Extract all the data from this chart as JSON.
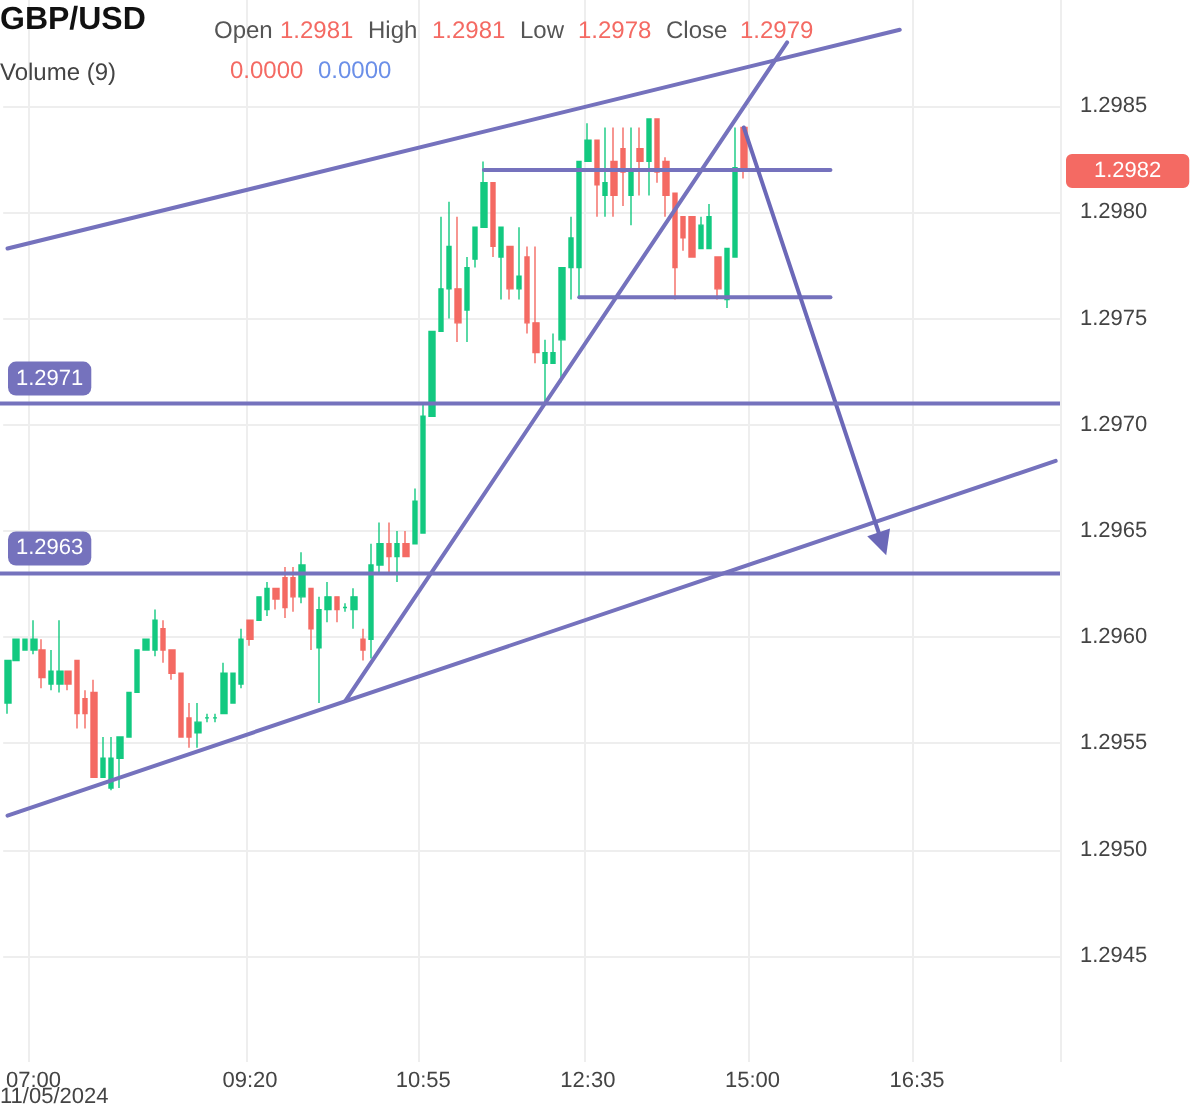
{
  "chart_data": {
    "type": "candlestick",
    "title": "GBP/USD",
    "annotations": [
      "Open",
      "1.2981",
      "High",
      "1.2981",
      "Low",
      "1.2978",
      "Close",
      "1.2979",
      "Volume (9)",
      "0.0000",
      "0.0000",
      "11/05/2024",
      "1.2982"
    ],
    "categories": [
      null,
      null,
      null,
      "07:00",
      null,
      null,
      null,
      null,
      null,
      null,
      null,
      null,
      null,
      null,
      null,
      null,
      null,
      null,
      null,
      null,
      null,
      null,
      null,
      null,
      null,
      null,
      null,
      null,
      "09:20",
      null,
      null,
      null,
      null,
      null,
      null,
      null,
      null,
      null,
      null,
      null,
      null,
      null,
      null,
      null,
      null,
      null,
      null,
      null,
      "10:55",
      null,
      null,
      null,
      null,
      null,
      null,
      null,
      null,
      null,
      null,
      null,
      null,
      null,
      null,
      null,
      null,
      null,
      null,
      "12:30",
      null,
      null,
      null,
      null,
      null,
      null,
      null,
      null,
      null,
      null,
      null,
      null,
      null,
      null,
      null,
      null,
      null,
      null,
      "15:00",
      null,
      null,
      null,
      null,
      null,
      null,
      null,
      null,
      null,
      null,
      null,
      null,
      null,
      null,
      null,
      null,
      null,
      null,
      "16:35",
      null,
      null,
      null,
      null,
      null,
      null,
      null,
      null,
      null,
      null,
      null,
      null,
      null,
      null,
      null,
      null
    ],
    "ylim": [
      1.294,
      1.299
    ],
    "yticks": [
      {
        "value": 1.2945,
        "label": "1.2945"
      },
      {
        "value": 1.295,
        "label": "1.2950"
      },
      {
        "value": 1.2955,
        "label": "1.2955"
      },
      {
        "value": 1.296,
        "label": "1.2960"
      },
      {
        "value": 1.2965,
        "label": "1.2965"
      },
      {
        "value": 1.297,
        "label": "1.2970"
      },
      {
        "value": 1.2975,
        "label": "1.2975"
      },
      {
        "value": 1.298,
        "label": "1.2980"
      },
      {
        "value": 1.2985,
        "label": "1.2985"
      }
    ],
    "grid": true,
    "ref_lines": [
      {
        "axis": "y",
        "value": 1.2971,
        "label": "1.2971",
        "color": "#7572bd"
      },
      {
        "axis": "y",
        "value": 1.2963,
        "label": "1.2963",
        "color": "#7572bd"
      }
    ],
    "series": [
      {
        "type": "candlestick",
        "ohlc": [
          [
            1.29569,
            1.29589,
            1.29564,
            1.29589
          ],
          [
            1.29589,
            1.29599,
            1.29589,
            1.29599
          ],
          [
            1.29594,
            1.29599,
            1.29594,
            1.29599
          ],
          [
            1.29594,
            1.29608,
            1.29592,
            1.29599
          ],
          [
            1.29594,
            1.29599,
            1.29576,
            1.29581
          ],
          [
            1.29578,
            1.29594,
            1.29575,
            1.29584
          ],
          [
            1.29578,
            1.29608,
            1.29574,
            1.29584
          ],
          [
            1.29584,
            1.29584,
            1.29575,
            1.29578
          ],
          [
            1.29589,
            1.29589,
            1.29557,
            1.29564
          ],
          [
            1.29571,
            1.29575,
            1.29557,
            1.29564
          ],
          [
            1.29574,
            1.2958,
            1.29534,
            1.29534
          ],
          [
            1.29534,
            1.29553,
            1.29534,
            1.29543
          ],
          [
            1.29529,
            1.29553,
            1.29528,
            1.29543
          ],
          [
            1.29543,
            1.29553,
            1.29529,
            1.29553
          ],
          [
            1.29553,
            1.29574,
            1.29553,
            1.29574
          ],
          [
            1.29574,
            1.29594,
            1.29574,
            1.29594
          ],
          [
            1.29594,
            1.29599,
            1.29594,
            1.29599
          ],
          [
            1.29594,
            1.29613,
            1.29591,
            1.29608
          ],
          [
            1.29604,
            1.29608,
            1.29588,
            1.29594
          ],
          [
            1.29594,
            1.29594,
            1.2958,
            1.29583
          ],
          [
            1.29583,
            1.29583,
            1.29553,
            1.29553
          ],
          [
            1.29562,
            1.29569,
            1.29548,
            1.29553
          ],
          [
            1.29555,
            1.29569,
            1.29548,
            1.2956
          ],
          [
            1.29562,
            1.29564,
            1.2956,
            1.29562
          ],
          [
            1.29562,
            1.29564,
            1.2956,
            1.29562
          ],
          [
            1.29564,
            1.29588,
            1.29564,
            1.29583
          ],
          [
            1.29569,
            1.29583,
            1.29569,
            1.29583
          ],
          [
            1.29578,
            1.29604,
            1.29576,
            1.29599
          ],
          [
            1.29608,
            1.29608,
            1.29596,
            1.29599
          ],
          [
            1.29608,
            1.29619,
            1.29608,
            1.29619
          ],
          [
            1.29613,
            1.29626,
            1.2961,
            1.29623
          ],
          [
            1.29623,
            1.29623,
            1.29613,
            1.29618
          ],
          [
            1.29628,
            1.29633,
            1.29609,
            1.29614
          ],
          [
            1.29628,
            1.29633,
            1.29612,
            1.29619
          ],
          [
            1.29619,
            1.2964,
            1.29616,
            1.29634
          ],
          [
            1.29623,
            1.29623,
            1.29594,
            1.29604
          ],
          [
            1.29595,
            1.29619,
            1.29569,
            1.29613
          ],
          [
            1.29613,
            1.29626,
            1.29607,
            1.29619
          ],
          [
            1.29619,
            1.29619,
            1.29607,
            1.29613
          ],
          [
            1.29614,
            1.29616,
            1.29612,
            1.29614
          ],
          [
            1.29613,
            1.29623,
            1.29604,
            1.29619
          ],
          [
            1.29599,
            1.29604,
            1.29589,
            1.29594
          ],
          [
            1.29599,
            1.29644,
            1.2959,
            1.29634
          ],
          [
            1.29634,
            1.29654,
            1.2963,
            1.29644
          ],
          [
            1.29644,
            1.29654,
            1.2963,
            1.29638
          ],
          [
            1.29638,
            1.2965,
            1.29626,
            1.29644
          ],
          [
            1.29644,
            1.2965,
            1.29638,
            1.29638
          ],
          [
            1.29644,
            1.2967,
            1.29644,
            1.29664
          ],
          [
            1.29649,
            1.2971,
            1.29649,
            1.29704
          ],
          [
            1.29704,
            1.29744,
            1.29704,
            1.29744
          ],
          [
            1.29744,
            1.29798,
            1.29744,
            1.29764
          ],
          [
            1.29764,
            1.29805,
            1.2975,
            1.29784
          ],
          [
            1.29764,
            1.29798,
            1.29739,
            1.29748
          ],
          [
            1.29754,
            1.29779,
            1.29739,
            1.29774
          ],
          [
            1.29778,
            1.29793,
            1.29774,
            1.29793
          ],
          [
            1.29793,
            1.29824,
            1.29793,
            1.29814
          ],
          [
            1.29814,
            1.29814,
            1.29779,
            1.29784
          ],
          [
            1.29779,
            1.29793,
            1.29759,
            1.29793
          ],
          [
            1.29784,
            1.29784,
            1.29759,
            1.29764
          ],
          [
            1.29764,
            1.29793,
            1.29759,
            1.2977
          ],
          [
            1.29779,
            1.29784,
            1.29743,
            1.29748
          ],
          [
            1.29748,
            1.29784,
            1.29729,
            1.29734
          ],
          [
            1.29729,
            1.2974,
            1.2971,
            1.29734
          ],
          [
            1.29729,
            1.29743,
            1.29729,
            1.29734
          ],
          [
            1.2974,
            1.29774,
            1.2972,
            1.29774
          ],
          [
            1.29774,
            1.29798,
            1.29759,
            1.29788
          ],
          [
            1.29774,
            1.29824,
            1.2976,
            1.29824
          ],
          [
            1.29824,
            1.29842,
            1.29824,
            1.29834
          ],
          [
            1.29834,
            1.29834,
            1.29798,
            1.29813
          ],
          [
            1.29808,
            1.2984,
            1.29798,
            1.29814
          ],
          [
            1.29824,
            1.2984,
            1.29798,
            1.29808
          ],
          [
            1.2983,
            1.2984,
            1.29803,
            1.29819
          ],
          [
            1.29808,
            1.2984,
            1.29794,
            1.29819
          ],
          [
            1.2983,
            1.2984,
            1.29808,
            1.29824
          ],
          [
            1.29824,
            1.29844,
            1.29808,
            1.29844
          ],
          [
            1.29844,
            1.29844,
            1.29814,
            1.29819
          ],
          [
            1.29824,
            1.29826,
            1.29798,
            1.29808
          ],
          [
            1.29809,
            1.29809,
            1.29759,
            1.29774
          ],
          [
            1.29798,
            1.29798,
            1.29782,
            1.29788
          ],
          [
            1.29798,
            1.29798,
            1.29779,
            1.29779
          ],
          [
            1.29783,
            1.29798,
            1.29783,
            1.29794
          ],
          [
            1.29783,
            1.29804,
            1.29783,
            1.29798
          ],
          [
            1.29779,
            1.29779,
            1.29759,
            1.29764
          ],
          [
            1.29759,
            1.29783,
            1.29755,
            1.29783
          ],
          [
            1.29779,
            1.2984,
            1.29779,
            1.29821
          ],
          [
            1.2984,
            1.2984,
            1.29816,
            1.29821
          ],
          null,
          null,
          null,
          null,
          null,
          null,
          null,
          null,
          null,
          null,
          null,
          null,
          null,
          null,
          null,
          null,
          null,
          null,
          null,
          null,
          null,
          null,
          null,
          null,
          null,
          null,
          null,
          null,
          null,
          null,
          null,
          null,
          null,
          null,
          null,
          null
        ]
      },
      {
        "type": "line",
        "color": "#7572bd",
        "marker": "none",
        "line_style": "solid",
        "values": [
          1.29783,
          null,
          null,
          null,
          null,
          null,
          null,
          null,
          null,
          null,
          null,
          null,
          null,
          null,
          null,
          null,
          null,
          null,
          null,
          null,
          null,
          null,
          null,
          null,
          null,
          null,
          null,
          null,
          null,
          null,
          null,
          null,
          null,
          null,
          null,
          null,
          null,
          null,
          null,
          null,
          null,
          null,
          null,
          null,
          null,
          null,
          null,
          null,
          null,
          null,
          null,
          null,
          null,
          null,
          null,
          null,
          null,
          null,
          null,
          null,
          null,
          null,
          null,
          null,
          null,
          null,
          null,
          null,
          null,
          null,
          null,
          null,
          null,
          null,
          null,
          null,
          null,
          null,
          null,
          null,
          null,
          null,
          null,
          null,
          null,
          null,
          null,
          null,
          null,
          null,
          null,
          null,
          null,
          null,
          null,
          null,
          null,
          null,
          null,
          null,
          null,
          null,
          null,
          1.29886,
          null,
          null,
          null,
          null,
          null,
          null,
          null,
          null,
          null,
          null,
          null,
          null,
          null,
          null,
          null,
          null,
          null,
          null
        ]
      },
      {
        "type": "line",
        "color": "#7572bd",
        "marker": "none",
        "line_style": "solid",
        "values": [
          1.29516,
          null,
          null,
          null,
          null,
          null,
          null,
          null,
          null,
          null,
          null,
          null,
          null,
          null,
          null,
          null,
          null,
          null,
          null,
          null,
          null,
          null,
          null,
          null,
          null,
          null,
          null,
          null,
          null,
          null,
          null,
          null,
          null,
          null,
          null,
          null,
          null,
          null,
          null,
          null,
          null,
          null,
          null,
          null,
          null,
          null,
          null,
          null,
          null,
          null,
          null,
          null,
          null,
          null,
          null,
          null,
          null,
          null,
          null,
          null,
          null,
          null,
          null,
          null,
          null,
          null,
          null,
          null,
          null,
          null,
          null,
          null,
          null,
          null,
          null,
          null,
          null,
          null,
          null,
          null,
          null,
          null,
          null,
          null,
          null,
          null,
          null,
          null,
          null,
          null,
          null,
          null,
          null,
          null,
          null,
          null,
          null,
          null,
          null,
          null,
          null,
          null,
          null,
          null,
          null,
          null,
          null,
          null,
          null,
          null,
          null,
          null,
          null,
          null,
          null,
          null,
          null,
          null,
          null,
          null,
          null,
          1.29683
        ]
      },
      {
        "type": "line",
        "color": "#7572bd",
        "marker": "none",
        "line_style": "solid",
        "values": [
          null,
          null,
          null,
          null,
          null,
          null,
          null,
          null,
          null,
          null,
          null,
          null,
          null,
          null,
          null,
          null,
          null,
          null,
          null,
          null,
          null,
          null,
          null,
          null,
          null,
          null,
          null,
          null,
          null,
          null,
          null,
          null,
          null,
          null,
          null,
          null,
          null,
          null,
          null,
          1.2957,
          null,
          null,
          null,
          null,
          null,
          null,
          null,
          null,
          null,
          null,
          null,
          null,
          null,
          null,
          null,
          null,
          null,
          null,
          null,
          null,
          null,
          null,
          null,
          null,
          null,
          null,
          null,
          null,
          null,
          null,
          null,
          null,
          null,
          null,
          null,
          null,
          null,
          null,
          null,
          null,
          null,
          null,
          null,
          null,
          null,
          null,
          null,
          null,
          null,
          null,
          1.2988,
          null,
          null,
          null,
          null,
          null,
          null,
          null,
          null,
          null,
          null,
          null,
          null,
          null,
          null,
          null,
          null,
          null,
          null,
          null,
          null,
          null,
          null,
          null,
          null,
          null,
          null,
          null,
          null,
          null,
          null,
          null
        ]
      },
      {
        "type": "line",
        "color": "#7572bd",
        "marker": "none",
        "line_style": "solid",
        "values": [
          null,
          null,
          null,
          null,
          null,
          null,
          null,
          null,
          null,
          null,
          null,
          null,
          null,
          null,
          null,
          null,
          null,
          null,
          null,
          null,
          null,
          null,
          null,
          null,
          null,
          null,
          null,
          null,
          null,
          null,
          null,
          null,
          null,
          null,
          null,
          null,
          null,
          null,
          null,
          null,
          null,
          null,
          null,
          null,
          null,
          null,
          null,
          null,
          null,
          null,
          null,
          null,
          null,
          null,
          null,
          1.2982,
          null,
          null,
          null,
          null,
          null,
          null,
          null,
          null,
          null,
          null,
          null,
          null,
          null,
          null,
          null,
          null,
          null,
          null,
          null,
          null,
          null,
          null,
          null,
          null,
          null,
          null,
          null,
          null,
          null,
          null,
          null,
          null,
          null,
          null,
          null,
          null,
          null,
          null,
          null,
          1.2982,
          null,
          null,
          null,
          null,
          null,
          null,
          null,
          null,
          null,
          null,
          null,
          null,
          null,
          null,
          null,
          null,
          null,
          null,
          null,
          null,
          null,
          null,
          null,
          null,
          null,
          null
        ]
      },
      {
        "type": "line",
        "color": "#7572bd",
        "marker": "none",
        "line_style": "solid",
        "values": [
          null,
          null,
          null,
          null,
          null,
          null,
          null,
          null,
          null,
          null,
          null,
          null,
          null,
          null,
          null,
          null,
          null,
          null,
          null,
          null,
          null,
          null,
          null,
          null,
          null,
          null,
          null,
          null,
          null,
          null,
          null,
          null,
          null,
          null,
          null,
          null,
          null,
          null,
          null,
          null,
          null,
          null,
          null,
          null,
          null,
          null,
          null,
          null,
          null,
          null,
          null,
          null,
          null,
          null,
          null,
          null,
          null,
          null,
          null,
          null,
          null,
          null,
          null,
          null,
          null,
          null,
          1.2976,
          null,
          null,
          null,
          null,
          null,
          null,
          null,
          null,
          null,
          null,
          null,
          null,
          null,
          null,
          null,
          null,
          null,
          null,
          null,
          null,
          null,
          null,
          null,
          null,
          null,
          null,
          null,
          null,
          1.2976,
          null,
          null,
          null,
          null,
          null,
          null,
          null,
          null,
          null,
          null,
          null,
          null,
          null,
          null,
          null,
          null,
          null,
          null,
          null,
          null,
          null,
          null,
          null,
          null,
          null,
          null
        ]
      },
      {
        "type": "line",
        "color": "#6b68b8",
        "marker": "triangle",
        "line_style": "solid",
        "values": [
          null,
          null,
          null,
          null,
          null,
          null,
          null,
          null,
          null,
          null,
          null,
          null,
          null,
          null,
          null,
          null,
          null,
          null,
          null,
          null,
          null,
          null,
          null,
          null,
          null,
          null,
          null,
          null,
          null,
          null,
          null,
          null,
          null,
          null,
          null,
          null,
          null,
          null,
          null,
          null,
          null,
          null,
          null,
          null,
          null,
          null,
          null,
          null,
          null,
          null,
          null,
          null,
          null,
          null,
          null,
          null,
          null,
          null,
          null,
          null,
          null,
          null,
          null,
          null,
          null,
          null,
          null,
          null,
          null,
          null,
          null,
          null,
          null,
          null,
          null,
          null,
          null,
          null,
          null,
          null,
          null,
          null,
          null,
          null,
          null,
          1.2984,
          null,
          null,
          null,
          null,
          null,
          null,
          null,
          null,
          null,
          null,
          null,
          null,
          null,
          null,
          null,
          1.29644,
          null,
          null,
          null,
          null,
          null,
          null,
          null,
          null,
          null,
          null,
          null,
          null,
          null,
          null,
          null,
          null,
          null,
          null,
          null,
          null
        ]
      }
    ]
  }
}
